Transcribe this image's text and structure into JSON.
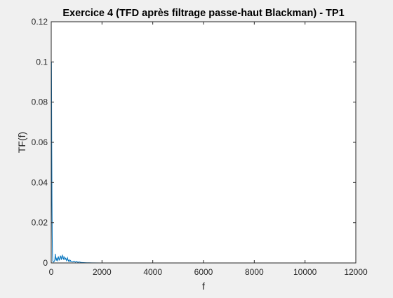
{
  "chart_data": {
    "type": "line",
    "title": "Exercice 4 (TFD après filtrage passe-haut Blackman) - TP1",
    "xlabel": "f",
    "ylabel": "TF(f)",
    "xlim": [
      0,
      12000
    ],
    "ylim": [
      0,
      0.12
    ],
    "xticks": [
      0,
      2000,
      4000,
      6000,
      8000,
      10000,
      12000
    ],
    "xtick_labels": [
      "0",
      "2000",
      "4000",
      "6000",
      "8000",
      "10000",
      "12000"
    ],
    "yticks": [
      0,
      0.02,
      0.04,
      0.06,
      0.08,
      0.1,
      0.12
    ],
    "ytick_labels": [
      "0",
      "0.02",
      "0.04",
      "0.06",
      "0.08",
      "0.1",
      "0.12"
    ],
    "grid": false,
    "series": [
      {
        "name": "TF(f)",
        "color": "#0072bd",
        "x": [
          0,
          10,
          20,
          30,
          40,
          50,
          60,
          80,
          100,
          120,
          140,
          160,
          180,
          200,
          220,
          240,
          260,
          280,
          300,
          320,
          340,
          360,
          380,
          400,
          420,
          440,
          460,
          480,
          500,
          520,
          540,
          560,
          580,
          600,
          620,
          640,
          660,
          680,
          700,
          720,
          740,
          760,
          780,
          800,
          850,
          900,
          950,
          1000,
          1050,
          1100,
          1200,
          1400,
          1600,
          2000,
          3000,
          4000,
          5000,
          6000,
          7000,
          8000,
          9000,
          10000,
          11025
        ],
        "values": [
          0.001,
          0.1,
          0.06,
          0.03,
          0.012,
          0.004,
          0.0012,
          0.0004,
          0.0006,
          0.0008,
          0.0015,
          0.0045,
          0.0022,
          0.0012,
          0.0026,
          0.0018,
          0.0009,
          0.0032,
          0.0024,
          0.0013,
          0.0022,
          0.0036,
          0.0028,
          0.0016,
          0.0033,
          0.0038,
          0.0024,
          0.0019,
          0.0031,
          0.0027,
          0.0015,
          0.0024,
          0.0021,
          0.0012,
          0.0018,
          0.0026,
          0.0014,
          0.0009,
          0.0016,
          0.0011,
          0.0007,
          0.0012,
          0.0008,
          0.0007,
          0.0005,
          0.0009,
          0.0004,
          0.0008,
          0.0003,
          0.0005,
          0.0002,
          0.0001,
          5e-05,
          2e-05,
          1e-05,
          1e-05,
          1e-05,
          1e-05,
          1e-05,
          1e-05,
          1e-05,
          1e-05,
          1e-05
        ]
      }
    ]
  }
}
